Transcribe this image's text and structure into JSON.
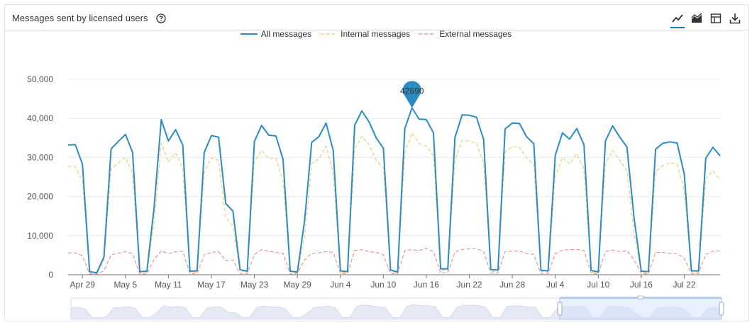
{
  "header": {
    "title": "Messages sent by licensed users",
    "help_icon": "help-circle-icon",
    "toolbar": [
      {
        "name": "line-chart-button",
        "icon": "line-chart-icon",
        "active": true
      },
      {
        "name": "area-chart-button",
        "icon": "area-chart-icon",
        "active": false
      },
      {
        "name": "table-view-button",
        "icon": "table-icon",
        "active": false
      },
      {
        "name": "download-button",
        "icon": "download-icon",
        "active": false
      }
    ]
  },
  "colors": {
    "all": "#2b8cc4",
    "internal": "#f2c55c",
    "external": "#f0837a",
    "grid": "#e6e9f2",
    "zoom_fill": "#d5e2fb"
  },
  "tooltip": {
    "value": "42690"
  },
  "chart_data": {
    "type": "line",
    "title": "",
    "xlabel": "",
    "ylabel": "",
    "ylim": [
      0,
      50000
    ],
    "yticks": [
      "0",
      "10,000",
      "20,000",
      "30,000",
      "40,000",
      "50,000"
    ],
    "xticks": [
      "Apr 29",
      "May 5",
      "May 11",
      "May 17",
      "May 23",
      "May 29",
      "Jun 4",
      "Jun 10",
      "Jun 16",
      "Jun 22",
      "Jun 28",
      "Jul 4",
      "Jul 10",
      "Jul 16",
      "Jul 22"
    ],
    "grid": true,
    "legend_position": "top-center",
    "series": [
      {
        "name": "All messages",
        "style": "solid",
        "values": [
          33200,
          33300,
          28300,
          800,
          500,
          4500,
          32200,
          34100,
          35900,
          31300,
          800,
          900,
          17200,
          39700,
          34200,
          37100,
          33200,
          900,
          1000,
          31300,
          35600,
          35200,
          18200,
          16300,
          1300,
          900,
          34100,
          38200,
          35700,
          35500,
          29500,
          900,
          700,
          13800,
          33900,
          35300,
          38800,
          31800,
          1000,
          800,
          38300,
          41900,
          39100,
          35000,
          32400,
          1200,
          700,
          37400,
          42690,
          39800,
          39700,
          36300,
          1500,
          1500,
          35100,
          40900,
          40800,
          40300,
          34600,
          1300,
          1200,
          37300,
          38800,
          38700,
          35300,
          33500,
          1100,
          1000,
          30500,
          36300,
          34700,
          37400,
          33300,
          1100,
          700,
          34200,
          38100,
          35200,
          32700,
          14500,
          900,
          800,
          32100,
          33600,
          34000,
          33700,
          25800,
          1000,
          1000,
          29800,
          32600,
          30400
        ]
      },
      {
        "name": "Internal messages",
        "style": "dashed",
        "values": [
          27700,
          27700,
          23900,
          600,
          300,
          3500,
          27100,
          28600,
          30000,
          25900,
          600,
          700,
          13300,
          33600,
          28800,
          31200,
          27200,
          600,
          700,
          26200,
          29900,
          29300,
          14600,
          12500,
          1000,
          600,
          28900,
          31800,
          29700,
          29800,
          24000,
          700,
          400,
          10000,
          28400,
          29700,
          32900,
          26100,
          700,
          500,
          32100,
          35500,
          33200,
          29300,
          27300,
          900,
          500,
          31200,
          36300,
          33600,
          32900,
          30400,
          1100,
          1000,
          29300,
          34400,
          34200,
          33600,
          28700,
          900,
          800,
          31400,
          32800,
          32600,
          29900,
          28300,
          800,
          700,
          25100,
          30000,
          28300,
          30900,
          27100,
          700,
          500,
          28300,
          31800,
          29300,
          26600,
          10600,
          600,
          600,
          26400,
          27900,
          28600,
          28300,
          21600,
          700,
          700,
          24600,
          26600,
          24300
        ]
      },
      {
        "name": "External messages",
        "style": "dashed",
        "values": [
          5600,
          5600,
          4900,
          200,
          200,
          1000,
          5100,
          5500,
          5900,
          5400,
          200,
          200,
          3900,
          6100,
          5400,
          5900,
          6000,
          300,
          300,
          5100,
          5700,
          5900,
          3600,
          3800,
          300,
          300,
          5200,
          6400,
          6000,
          5700,
          5500,
          200,
          300,
          3800,
          5500,
          5600,
          5900,
          5700,
          300,
          300,
          6200,
          6400,
          5900,
          5700,
          5100,
          300,
          200,
          6200,
          6400,
          6200,
          6800,
          5900,
          400,
          500,
          5800,
          6500,
          6600,
          6700,
          5900,
          400,
          400,
          5900,
          6000,
          6100,
          5400,
          5200,
          300,
          300,
          5400,
          6300,
          6400,
          6500,
          6200,
          400,
          200,
          5900,
          6300,
          5900,
          6100,
          3900,
          300,
          200,
          5700,
          5700,
          5400,
          5400,
          4200,
          300,
          300,
          5200,
          6000,
          6100
        ]
      }
    ]
  }
}
